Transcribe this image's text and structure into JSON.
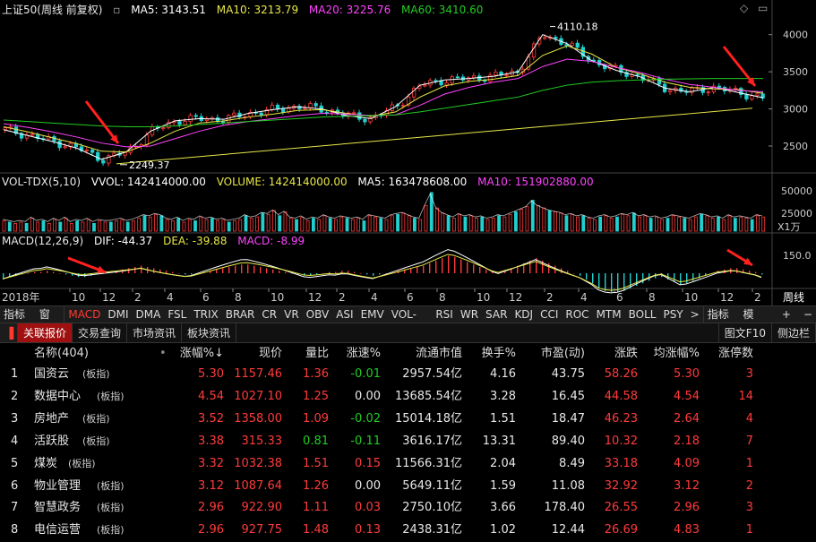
{
  "chart_data": [
    {
      "type": "line",
      "title": "上证50(周线 前复权)",
      "header": [
        {
          "label": "MA5: 3143.51",
          "color": "#ffffff"
        },
        {
          "label": "MA10: 3213.79",
          "color": "#e8e84a"
        },
        {
          "label": "MA20: 3225.76",
          "color": "#ff44ff"
        },
        {
          "label": "MA60: 3410.60",
          "color": "#22cc22"
        }
      ],
      "y_ticks": [
        "4000",
        "3500",
        "3000",
        "2500"
      ],
      "ylim": [
        2150,
        4250
      ],
      "annotations": [
        "4110.18",
        "2249.37"
      ],
      "series": [
        {
          "name": "MA5",
          "color": "#ffffff",
          "values": [
            2720,
            2640,
            2560,
            2470,
            2320,
            2420,
            2700,
            2840,
            2870,
            2860,
            2940,
            2990,
            3030,
            3000,
            2910,
            2870,
            3030,
            3320,
            3390,
            3410,
            3440,
            3500,
            4000,
            3880,
            3650,
            3520,
            3430,
            3280,
            3230,
            3290,
            3220,
            3150
          ]
        },
        {
          "name": "MA10",
          "color": "#e8e84a",
          "values": [
            2760,
            2690,
            2610,
            2530,
            2430,
            2420,
            2540,
            2700,
            2810,
            2840,
            2890,
            2930,
            2980,
            2990,
            2940,
            2900,
            2960,
            3160,
            3310,
            3370,
            3400,
            3450,
            3720,
            3850,
            3740,
            3560,
            3470,
            3360,
            3290,
            3270,
            3260,
            3210
          ]
        },
        {
          "name": "MA20",
          "color": "#ff44ff",
          "values": [
            2800,
            2750,
            2690,
            2620,
            2540,
            2490,
            2500,
            2600,
            2700,
            2780,
            2830,
            2870,
            2910,
            2940,
            2930,
            2910,
            2920,
            3050,
            3200,
            3290,
            3360,
            3410,
            3570,
            3670,
            3640,
            3560,
            3490,
            3400,
            3330,
            3290,
            3250,
            3230
          ]
        },
        {
          "name": "MA60",
          "color": "#22cc22",
          "values": [
            2850,
            2830,
            2810,
            2790,
            2770,
            2760,
            2760,
            2770,
            2790,
            2810,
            2830,
            2850,
            2870,
            2890,
            2900,
            2910,
            2920,
            2960,
            3010,
            3060,
            3110,
            3160,
            3250,
            3320,
            3360,
            3380,
            3390,
            3400,
            3405,
            3410,
            3410,
            3410
          ]
        }
      ]
    },
    {
      "type": "bar",
      "title": "VOL-TDX(5,10)",
      "header": [
        {
          "label": "VVOL: 142414000.00",
          "color": "#ffffff"
        },
        {
          "label": "VOLUME: 142414000.00",
          "color": "#e8e84a"
        },
        {
          "label": "MA5: 163478608.00",
          "color": "#ffffff"
        },
        {
          "label": "MA10: 151902880.00",
          "color": "#ff44ff"
        }
      ],
      "y_ticks": [
        "50000",
        "25000"
      ],
      "unit": "X1万",
      "values": [
        8,
        7,
        6,
        7,
        6,
        10,
        7,
        8,
        6,
        9,
        7,
        10,
        6,
        8,
        7,
        9,
        6,
        8,
        7,
        7,
        8,
        9,
        7,
        8,
        10,
        12,
        11,
        13,
        12,
        9,
        8,
        10,
        7,
        9,
        8,
        11,
        9,
        10,
        8,
        9,
        7,
        8,
        9,
        12,
        10,
        11,
        14,
        13,
        16,
        12,
        15,
        10,
        9,
        11,
        8,
        10,
        9,
        12,
        10,
        9,
        11,
        10,
        9,
        10,
        8,
        12,
        11,
        10,
        9,
        12,
        13,
        14,
        12,
        10,
        9,
        20,
        30,
        18,
        14,
        12,
        10,
        13,
        11,
        12,
        10,
        11,
        9,
        10,
        12,
        11,
        13,
        15,
        17,
        19,
        24,
        20,
        18,
        16,
        15,
        14,
        12,
        13,
        11,
        12,
        10,
        9,
        11,
        12,
        10,
        11,
        13,
        12,
        14,
        11,
        12,
        10,
        11,
        9,
        10,
        12,
        11,
        10,
        9,
        11,
        13,
        12,
        10,
        11,
        9,
        12,
        10,
        11,
        10,
        9,
        12,
        11
      ]
    },
    {
      "type": "bar",
      "title": "MACD(12,26,9)",
      "header": [
        {
          "label": "DIF: -44.37",
          "color": "#ffffff"
        },
        {
          "label": "DEA: -39.88",
          "color": "#e8e84a"
        },
        {
          "label": "MACD: -8.99",
          "color": "#ff44ff"
        }
      ],
      "y_ticks": [
        "150.0"
      ],
      "x_labels": [
        "2018年",
        "10",
        "12",
        "2",
        "4",
        "6",
        "8",
        "10",
        "12",
        "2",
        "4",
        "6",
        "8",
        "10",
        "12",
        "2",
        "4",
        "6",
        "8",
        "10",
        "12",
        "2",
        "周线"
      ],
      "macd": [
        -4,
        -3,
        -2,
        -1,
        0,
        1,
        1,
        2,
        1,
        0,
        -1,
        -2,
        -3,
        -3,
        -2,
        -1,
        0,
        1,
        2,
        3,
        4,
        5,
        6,
        5,
        4,
        3,
        2,
        1,
        0,
        -1,
        -1,
        0,
        1,
        2,
        3,
        4,
        5,
        6,
        7,
        7,
        6,
        5,
        4,
        3,
        2,
        1,
        0,
        -1,
        -2,
        -2,
        -1,
        0,
        1,
        1,
        2,
        2,
        1,
        0,
        -1,
        -2,
        -1,
        0,
        1,
        2,
        3,
        4,
        5,
        6,
        8,
        10,
        12,
        14,
        13,
        11,
        9,
        7,
        5,
        3,
        1,
        0,
        2,
        4,
        6,
        8,
        10,
        12,
        10,
        8,
        6,
        4,
        2,
        0,
        -2,
        -5,
        -8,
        -12,
        -14,
        -15,
        -15,
        -14,
        -12,
        -10,
        -8,
        -6,
        -4,
        -3,
        -5,
        -7,
        -9,
        -8,
        -6,
        -4,
        -2,
        0,
        2,
        3,
        4,
        4,
        3,
        2,
        1,
        -1
      ]
    }
  ],
  "indicator_bar": {
    "left_label": "指标A",
    "window_label": "窗口",
    "items": [
      "MACD",
      "DMI",
      "DMA",
      "FSL",
      "TRIX",
      "BRAR",
      "CR",
      "VR",
      "OBV",
      "ASI",
      "EMV",
      "VOL-TDX",
      "RSI",
      "WR",
      "SAR",
      "KDJ",
      "CCI",
      "ROC",
      "MTM",
      "BOLL",
      "PSY"
    ],
    "active": "MACD",
    "more_icon": ">",
    "right_label": "指标B",
    "template_label": "模 板",
    "plus": "+",
    "minus": "−"
  },
  "tabs": {
    "items": [
      "关联报价",
      "交易查询",
      "市场资讯",
      "板块资讯"
    ],
    "active": "关联报价",
    "right_1": "图文F10",
    "right_2": "侧边栏"
  },
  "table": {
    "headers": [
      "名称(404)",
      "•",
      "涨幅%↓",
      "现价",
      "量比",
      "涨速%",
      "流通市值",
      "换手%",
      "市盈(动)",
      "涨跌",
      "均涨幅%",
      "涨停数"
    ],
    "rows": [
      {
        "n": "1",
        "name": "国资云",
        "tag": "(板指)",
        "chg": "5.30",
        "price": "1157.46",
        "vr": "1.36",
        "spd": "-0.01",
        "cap": "2957.54亿",
        "turn": "4.16",
        "pe": "43.75",
        "diff": "58.26",
        "avg": "5.30",
        "lim": "3"
      },
      {
        "n": "2",
        "name": "数据中心",
        "tag": "(板指)",
        "chg": "4.54",
        "price": "1027.10",
        "vr": "1.25",
        "spd": "0.00",
        "cap": "13685.54亿",
        "turn": "3.28",
        "pe": "16.45",
        "diff": "44.58",
        "avg": "4.54",
        "lim": "14"
      },
      {
        "n": "3",
        "name": "房地产",
        "tag": "(板指)",
        "chg": "3.52",
        "price": "1358.00",
        "vr": "1.09",
        "spd": "-0.02",
        "cap": "15014.18亿",
        "turn": "1.51",
        "pe": "18.47",
        "diff": "46.23",
        "avg": "2.64",
        "lim": "4"
      },
      {
        "n": "4",
        "name": "活跃股",
        "tag": "(板指)",
        "chg": "3.38",
        "price": "315.33",
        "vr": "0.81",
        "spd": "-0.11",
        "cap": "3616.17亿",
        "turn": "13.31",
        "pe": "89.40",
        "diff": "10.32",
        "avg": "2.18",
        "lim": "7"
      },
      {
        "n": "5",
        "name": "煤炭",
        "tag": "(板指)",
        "chg": "3.32",
        "price": "1032.38",
        "vr": "1.51",
        "spd": "0.15",
        "cap": "11566.31亿",
        "turn": "2.04",
        "pe": "8.49",
        "diff": "33.18",
        "avg": "4.09",
        "lim": "1"
      },
      {
        "n": "6",
        "name": "物业管理",
        "tag": "(板指)",
        "chg": "3.12",
        "price": "1087.64",
        "vr": "1.26",
        "spd": "0.00",
        "cap": "5649.11亿",
        "turn": "1.59",
        "pe": "11.08",
        "diff": "32.92",
        "avg": "3.12",
        "lim": "2"
      },
      {
        "n": "7",
        "name": "智慧政务",
        "tag": "(板指)",
        "chg": "2.96",
        "price": "922.90",
        "vr": "1.11",
        "spd": "0.03",
        "cap": "2750.10亿",
        "turn": "3.66",
        "pe": "178.40",
        "diff": "26.55",
        "avg": "2.96",
        "lim": "3"
      },
      {
        "n": "8",
        "name": "电信运营",
        "tag": "(板指)",
        "chg": "2.96",
        "price": "927.75",
        "vr": "1.48",
        "spd": "0.13",
        "cap": "2438.31亿",
        "turn": "1.02",
        "pe": "12.44",
        "diff": "26.69",
        "avg": "4.83",
        "lim": "1"
      }
    ]
  },
  "window_icons": [
    "◇",
    "▭"
  ]
}
